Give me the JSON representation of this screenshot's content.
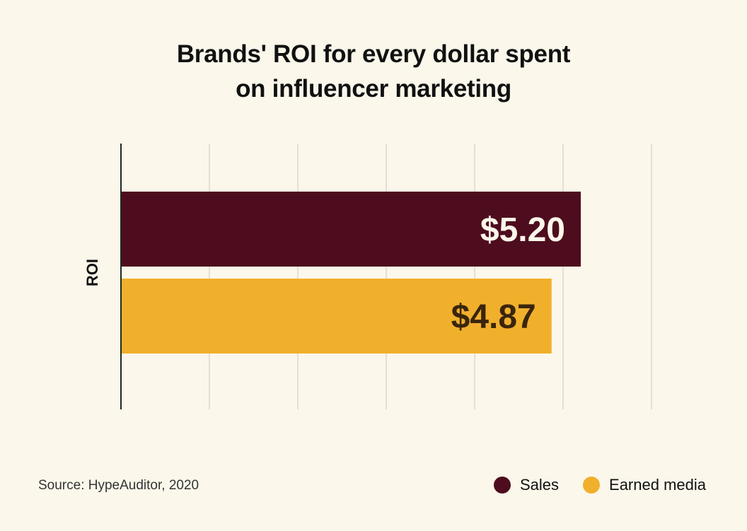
{
  "title_line1": "Brands' ROI for every dollar spent",
  "title_line2": "on influencer marketing",
  "source": "Source: HypeAuditor, 2020",
  "colors": {
    "background": "#fbf7ea",
    "sales": "#4e0d1e",
    "earned_media": "#f1b02c",
    "grid": "#d3d0c6",
    "axis": "#1d2b22"
  },
  "chart_data": {
    "type": "bar",
    "orientation": "horizontal",
    "title": "Brands' ROI for every dollar spent on influencer marketing",
    "categories": [
      "ROI"
    ],
    "ylabel": "ROI",
    "xlabel": "",
    "xlim": [
      0,
      6
    ],
    "grid": true,
    "legend_position": "bottom-right",
    "series": [
      {
        "name": "Sales",
        "values": [
          5.2
        ],
        "label": "$5.20",
        "color": "#4e0d1e",
        "label_color": "#fbf7ea"
      },
      {
        "name": "Earned media",
        "values": [
          4.87
        ],
        "label": "$4.87",
        "color": "#f1b02c",
        "label_color": "#3a250c"
      }
    ]
  }
}
